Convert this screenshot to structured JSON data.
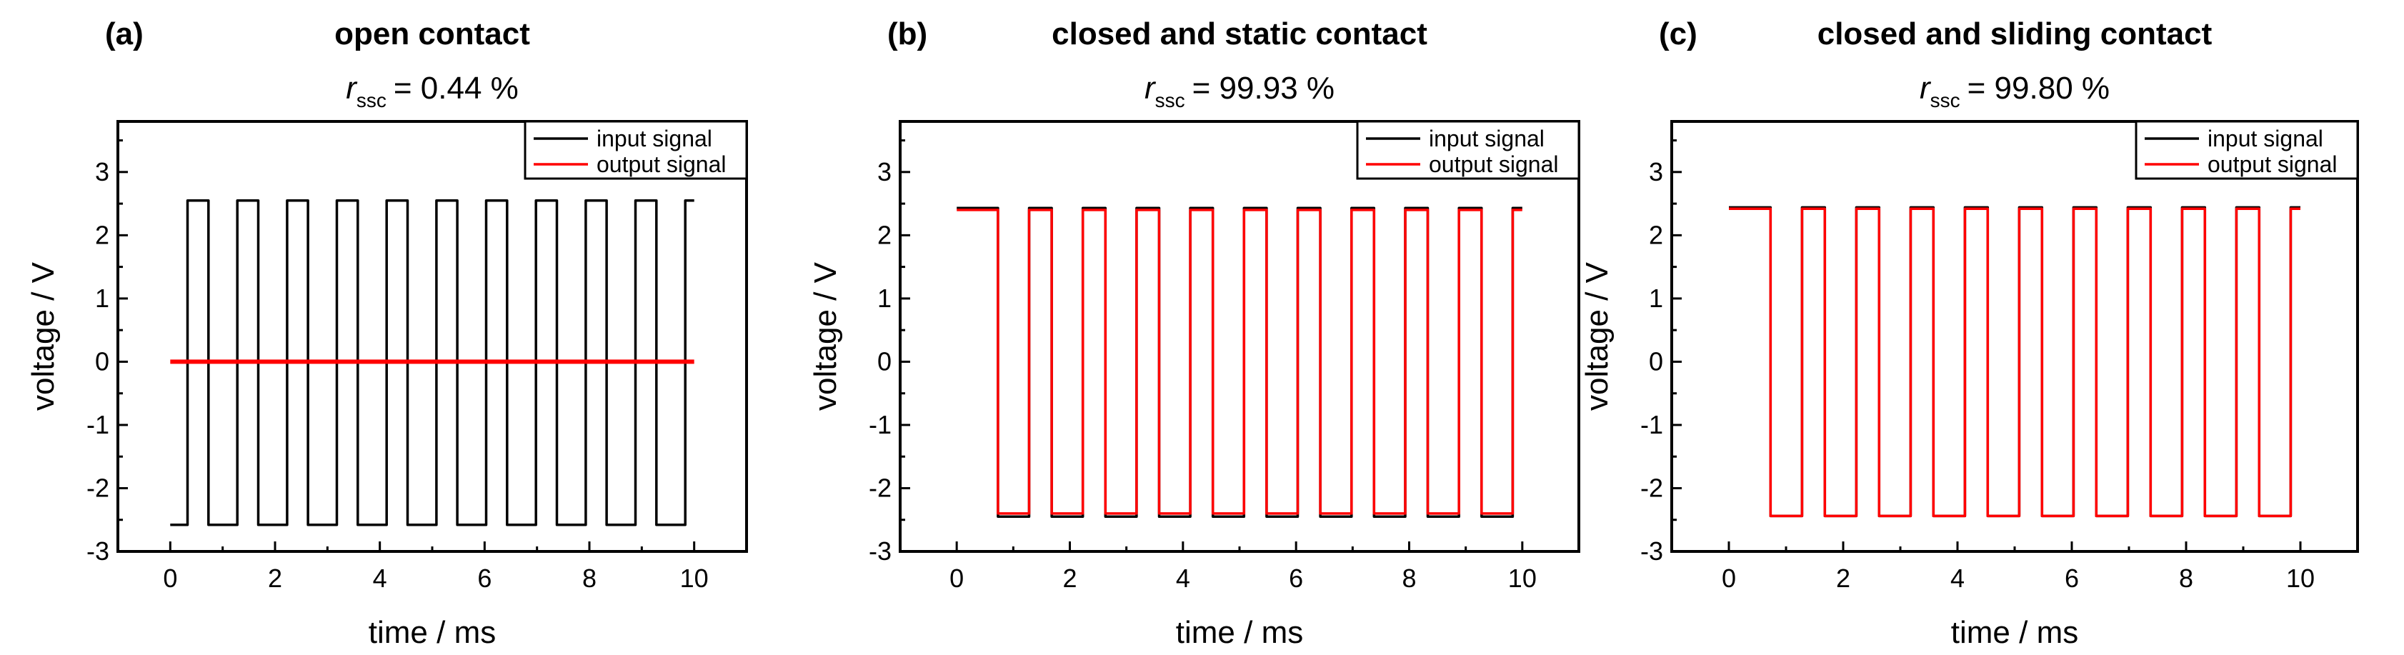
{
  "chart_data": [
    {
      "type": "line",
      "panel_label": "(a)",
      "title": "open contact",
      "subtitle": {
        "symbol": "r",
        "subscript": "ssc",
        "value": "= 0.44 %"
      },
      "xlabel": "time / ms",
      "ylabel": "voltage / V",
      "xlim": [
        -1,
        11
      ],
      "ylim": [
        -3,
        3.8
      ],
      "xticks": [
        0,
        2,
        4,
        6,
        8,
        10
      ],
      "yticks": [
        -3,
        -2,
        -1,
        0,
        1,
        2,
        3
      ],
      "grid": false,
      "legend_position": "top-right",
      "wave": {
        "start": 0,
        "end": 10,
        "period": 0.95,
        "duty": 0.42,
        "first_rise": 0.33
      },
      "series": [
        {
          "name": "input signal",
          "color": "#000000",
          "style": "square",
          "high": 2.55,
          "low": -2.58
        },
        {
          "name": "output signal",
          "color": "#ff0000",
          "style": "flat",
          "value": 0.0
        }
      ]
    },
    {
      "type": "line",
      "panel_label": "(b)",
      "title": "closed and static contact",
      "subtitle": {
        "symbol": "r",
        "subscript": "ssc",
        "value": "= 99.93 %"
      },
      "xlabel": "time / ms",
      "ylabel": "voltage / V",
      "xlim": [
        -1,
        11
      ],
      "ylim": [
        -3,
        3.8
      ],
      "xticks": [
        0,
        2,
        4,
        6,
        8,
        10
      ],
      "yticks": [
        -3,
        -2,
        -1,
        0,
        1,
        2,
        3
      ],
      "grid": false,
      "legend_position": "top-right",
      "wave": {
        "start": 0,
        "end": 10,
        "period": 0.95,
        "duty": 0.42,
        "first_rise": 0.33,
        "starts_high": true
      },
      "series": [
        {
          "name": "input signal",
          "color": "#000000",
          "style": "square",
          "high": 2.43,
          "low": -2.45
        },
        {
          "name": "output signal",
          "color": "#ff0000",
          "style": "square",
          "high": 2.4,
          "low": -2.4
        }
      ]
    },
    {
      "type": "line",
      "panel_label": "(c)",
      "title": "closed and sliding contact",
      "subtitle": {
        "symbol": "r",
        "subscript": "ssc",
        "value": "= 99.80 %"
      },
      "xlabel": "time / ms",
      "ylabel": "voltage / V",
      "xlim": [
        -1,
        11
      ],
      "ylim": [
        -3,
        3.8
      ],
      "xticks": [
        0,
        2,
        4,
        6,
        8,
        10
      ],
      "yticks": [
        -3,
        -2,
        -1,
        0,
        1,
        2,
        3
      ],
      "grid": false,
      "legend_position": "top-right",
      "wave": {
        "start": 0,
        "end": 10,
        "period": 0.95,
        "duty": 0.42,
        "first_rise": 0.33,
        "starts_high": true
      },
      "series": [
        {
          "name": "input signal",
          "color": "#000000",
          "style": "square",
          "high": 2.44,
          "low": -2.44
        },
        {
          "name": "output signal",
          "color": "#ff0000",
          "style": "square",
          "high": 2.42,
          "low": -2.44
        }
      ]
    }
  ]
}
